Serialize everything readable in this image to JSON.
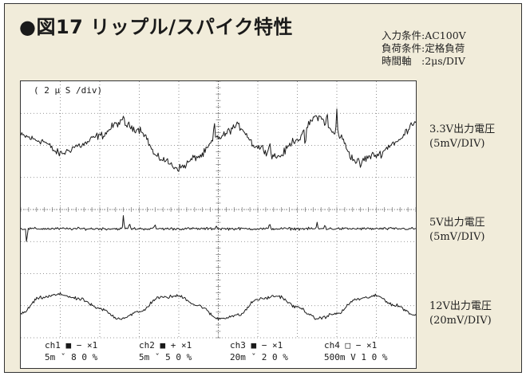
{
  "figure": {
    "title": "●図17 リップル/スパイク特性",
    "conditions": [
      "入力条件:AC100V",
      "負荷条件:定格負荷",
      "時間軸　:2μs/DIV"
    ]
  },
  "scope": {
    "timebase_label": "( 2 μ S /div)",
    "status": [
      {
        "ch": "ch1 ■ − ×1",
        "set": "5m ˇ  8 0 %"
      },
      {
        "ch": "ch2 ■ + ×1",
        "set": "5m ˇ  5 0 %"
      },
      {
        "ch": "ch3 ■ − ×1",
        "set": "20m ˇ  2 0 %"
      },
      {
        "ch": "ch4 □ − ×1",
        "set": "500m V  1 0 %"
      }
    ]
  },
  "labels": [
    {
      "name": "3.3V出力電圧",
      "scale": "(5mV/DIV)"
    },
    {
      "name": "5V出力電圧",
      "scale": "(5mV/DIV)"
    },
    {
      "name": "12V出力電圧",
      "scale": "(20mV/DIV)"
    }
  ],
  "colors": {
    "background": "#f1ecda",
    "trace": "#1a1a1a",
    "grid": "#777777"
  },
  "chart_data": {
    "type": "line",
    "title": "",
    "xlabel": "( 2 μ S /div)",
    "ylabel": "",
    "grid": true,
    "x_divisions": 10,
    "y_divisions": 8,
    "xlim": [
      0,
      20
    ],
    "x_unit": "μs",
    "series": [
      {
        "name": "3.3V出力電圧",
        "scale": "5mV/DIV",
        "x": [
          0,
          1,
          2,
          3,
          4,
          5,
          6,
          7,
          8,
          9,
          10,
          11,
          12,
          13,
          14,
          15,
          16,
          17,
          18,
          19,
          20
        ],
        "values": [
          0.4,
          0.1,
          -0.7,
          -0.2,
          0.4,
          1.2,
          0.8,
          -1.0,
          -1.6,
          -0.9,
          0.3,
          1.0,
          -0.3,
          -0.9,
          0.2,
          1.6,
          0.5,
          -1.2,
          -0.8,
          0.0,
          1.3
        ],
        "noise": 0.35,
        "spikes": [
          [
            5.2,
            0.6
          ],
          [
            9.8,
            1.1
          ],
          [
            12.6,
            1.0
          ],
          [
            15.5,
            0.9
          ],
          [
            16.0,
            1.5
          ],
          [
            14.4,
            -1.0
          ],
          [
            17.2,
            -0.6
          ]
        ]
      },
      {
        "name": "5V出力電圧",
        "scale": "5mV/DIV",
        "x": [
          0,
          20
        ],
        "values": [
          0,
          0
        ],
        "noise": 0.12,
        "spikes": [
          [
            0.3,
            -1.0
          ],
          [
            5.2,
            0.9
          ],
          [
            5.5,
            0.4
          ],
          [
            6.8,
            0.3
          ],
          [
            9.9,
            0.25
          ],
          [
            12.6,
            0.3
          ],
          [
            15.0,
            0.35
          ],
          [
            15.4,
            0.3
          ]
        ]
      },
      {
        "name": "12V出力電圧",
        "scale": "20mV/DIV",
        "x": [
          0,
          1,
          2,
          3,
          4,
          5,
          6,
          7,
          8,
          9,
          10,
          11,
          12,
          13,
          14,
          15,
          16,
          17,
          18,
          19,
          20
        ],
        "values": [
          -0.4,
          0.6,
          0.8,
          0.5,
          -0.1,
          -0.7,
          -0.3,
          0.6,
          0.7,
          0.1,
          -0.7,
          -0.5,
          0.5,
          0.7,
          0.0,
          -0.7,
          -0.4,
          0.5,
          0.7,
          0.1,
          -0.5
        ],
        "noise": 0.15,
        "spikes": []
      }
    ]
  }
}
